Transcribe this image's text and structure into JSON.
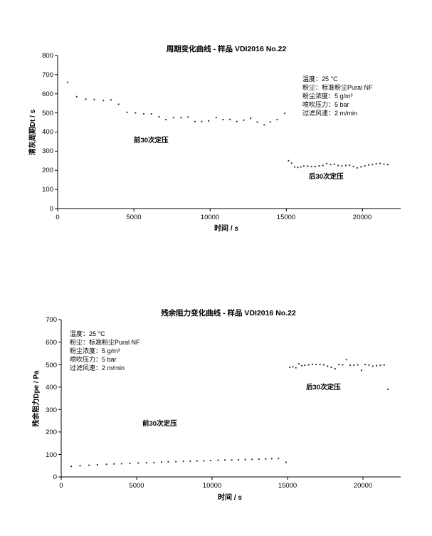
{
  "chart_data": [
    {
      "type": "scatter",
      "title": "周期变化曲线 - 样品 VDI2016 No.22",
      "xlabel": "时间 / s",
      "ylabel": "清灰周期Dt / s",
      "xlim": [
        0,
        22500
      ],
      "ylim": [
        0,
        800
      ],
      "xticks": [
        "0",
        "5000",
        "10000",
        "15000",
        "20000"
      ],
      "yticks": [
        "0",
        "100",
        "200",
        "300",
        "400",
        "500",
        "600",
        "700",
        "800"
      ],
      "grid": false,
      "legend": "none",
      "marker_color": "#333333",
      "info": [
        "温度：25 °C",
        "粉尘：标准粉尘Pural NF",
        "粉尘浓度：5 g/m³",
        "喷吹压力：5 bar",
        "过滤风速：2 m/min"
      ],
      "annotations": [
        "前30次定压",
        "后30次定压"
      ],
      "points": [
        [
          660,
          660
        ],
        [
          1250,
          585
        ],
        [
          1850,
          572
        ],
        [
          2400,
          570
        ],
        [
          3000,
          565
        ],
        [
          3500,
          568
        ],
        [
          4000,
          545
        ],
        [
          4550,
          503
        ],
        [
          5100,
          500
        ],
        [
          5650,
          495
        ],
        [
          6150,
          495
        ],
        [
          6650,
          480
        ],
        [
          7100,
          465
        ],
        [
          7600,
          475
        ],
        [
          8100,
          475
        ],
        [
          8550,
          478
        ],
        [
          9000,
          455
        ],
        [
          9450,
          455
        ],
        [
          9900,
          458
        ],
        [
          10400,
          476
        ],
        [
          10850,
          465
        ],
        [
          11300,
          466
        ],
        [
          11750,
          455
        ],
        [
          12200,
          462
        ],
        [
          12650,
          472
        ],
        [
          13100,
          452
        ],
        [
          13550,
          438
        ],
        [
          13950,
          452
        ],
        [
          14400,
          465
        ],
        [
          14900,
          498
        ],
        [
          15150,
          250
        ],
        [
          15350,
          237
        ],
        [
          15550,
          218
        ],
        [
          15750,
          215
        ],
        [
          15950,
          218
        ],
        [
          16150,
          222
        ],
        [
          16400,
          222
        ],
        [
          16650,
          220
        ],
        [
          16900,
          220
        ],
        [
          17150,
          223
        ],
        [
          17400,
          225
        ],
        [
          17650,
          235
        ],
        [
          17900,
          230
        ],
        [
          18150,
          232
        ],
        [
          18400,
          225
        ],
        [
          18650,
          222
        ],
        [
          18900,
          225
        ],
        [
          19150,
          227
        ],
        [
          19400,
          220
        ],
        [
          19650,
          213
        ],
        [
          19900,
          218
        ],
        [
          20150,
          223
        ],
        [
          20400,
          228
        ],
        [
          20650,
          230
        ],
        [
          20900,
          234
        ],
        [
          21150,
          236
        ],
        [
          21400,
          232
        ],
        [
          21650,
          230
        ]
      ]
    },
    {
      "type": "scatter",
      "title": "残余阻力变化曲线 - 样品 VDI2016 No.22",
      "xlabel": "时间 / s",
      "ylabel": "残余阻力Dpe / Pa",
      "xlim": [
        0,
        22500
      ],
      "ylim": [
        0,
        700
      ],
      "xticks": [
        "0",
        "5000",
        "10000",
        "15000",
        "20000"
      ],
      "yticks": [
        "0",
        "100",
        "200",
        "300",
        "400",
        "500",
        "600",
        "700"
      ],
      "grid": false,
      "legend": "none",
      "marker_color": "#333333",
      "info": [
        "温度：25 °C",
        "粉尘：标准粉尘Pural NF",
        "粉尘浓度：5 g/m³",
        "喷吹压力：5 bar",
        "过滤风速：2 m/min"
      ],
      "annotations": [
        "前30次定压",
        "后30次定压"
      ],
      "points": [
        [
          660,
          47
        ],
        [
          1250,
          50
        ],
        [
          1850,
          52
        ],
        [
          2400,
          54
        ],
        [
          3000,
          56
        ],
        [
          3500,
          58
        ],
        [
          4000,
          59
        ],
        [
          4550,
          60
        ],
        [
          5100,
          62
        ],
        [
          5650,
          63
        ],
        [
          6150,
          64
        ],
        [
          6650,
          66
        ],
        [
          7100,
          67
        ],
        [
          7600,
          68
        ],
        [
          8100,
          69
        ],
        [
          8550,
          70
        ],
        [
          9000,
          71
        ],
        [
          9450,
          72
        ],
        [
          9900,
          73
        ],
        [
          10400,
          74
        ],
        [
          10850,
          75
        ],
        [
          11300,
          75
        ],
        [
          11750,
          76
        ],
        [
          12200,
          77
        ],
        [
          12650,
          78
        ],
        [
          13100,
          79
        ],
        [
          13550,
          80
        ],
        [
          13950,
          81
        ],
        [
          14400,
          82
        ],
        [
          14900,
          65
        ],
        [
          15150,
          488
        ],
        [
          15350,
          490
        ],
        [
          15550,
          486
        ],
        [
          15750,
          503
        ],
        [
          15950,
          495
        ],
        [
          16150,
          497
        ],
        [
          16400,
          499
        ],
        [
          16650,
          501
        ],
        [
          16900,
          500
        ],
        [
          17150,
          500
        ],
        [
          17400,
          499
        ],
        [
          17650,
          493
        ],
        [
          17900,
          488
        ],
        [
          18150,
          481
        ],
        [
          18400,
          500
        ],
        [
          18650,
          499
        ],
        [
          18900,
          522
        ],
        [
          19150,
          497
        ],
        [
          19400,
          497
        ],
        [
          19650,
          499
        ],
        [
          19900,
          474
        ],
        [
          20150,
          500
        ],
        [
          20400,
          498
        ],
        [
          20650,
          493
        ],
        [
          20900,
          495
        ],
        [
          21150,
          497
        ],
        [
          21400,
          498
        ],
        [
          21650,
          390
        ]
      ]
    }
  ]
}
